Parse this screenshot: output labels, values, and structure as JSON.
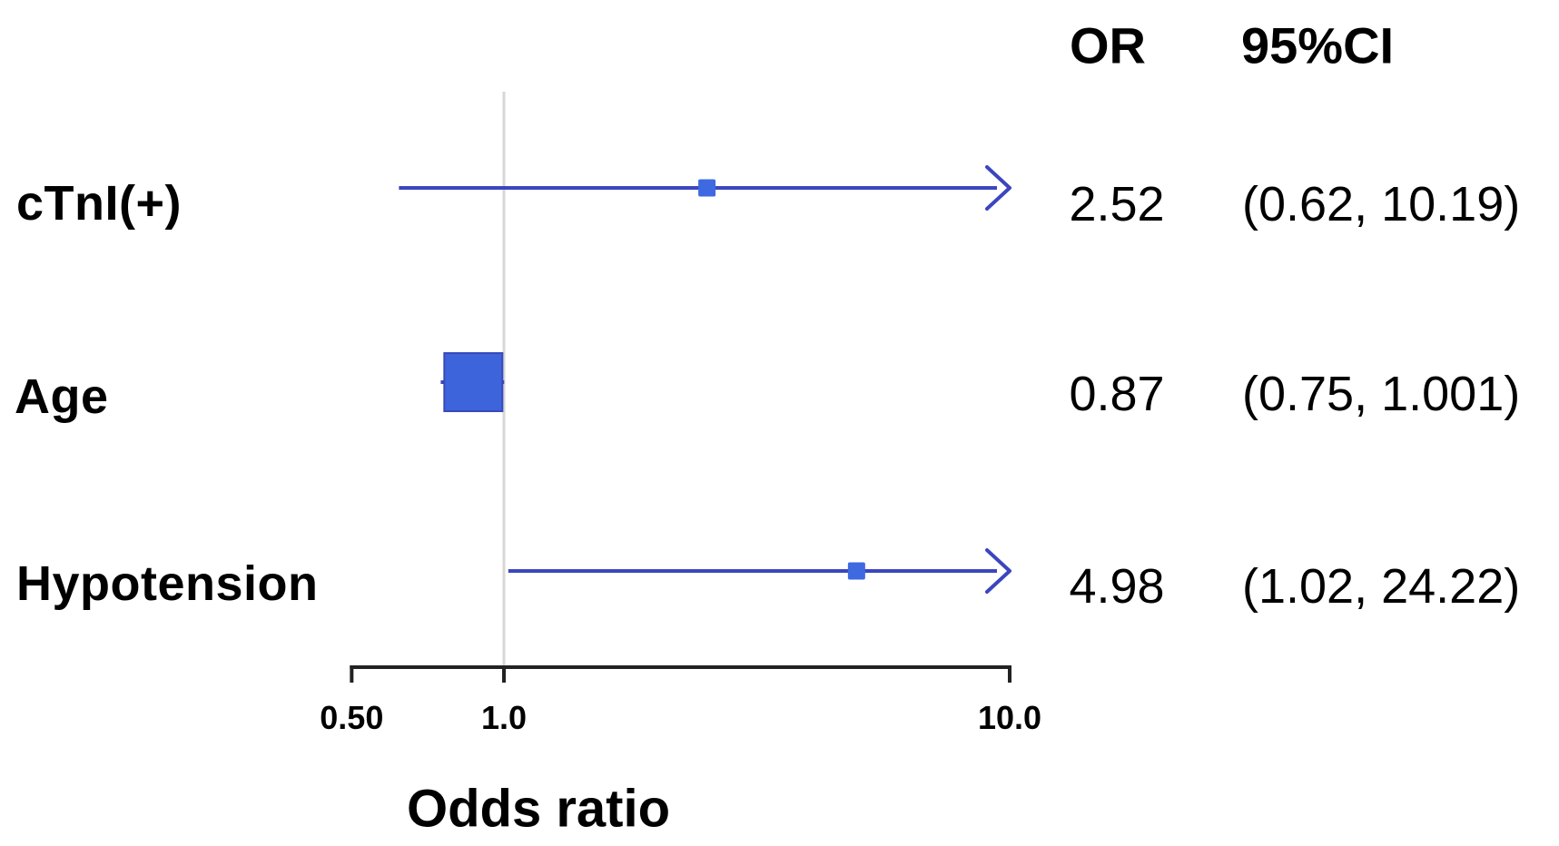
{
  "chart_data": {
    "type": "forest",
    "title": "",
    "xlabel": "Odds ratio",
    "x_scale": "log",
    "x_range": [
      0.5,
      10.0
    ],
    "x_ticks": [
      {
        "value": 0.5,
        "label": "0.50"
      },
      {
        "value": 1.0,
        "label": "1.0"
      },
      {
        "value": 10.0,
        "label": "10.0"
      }
    ],
    "reference_line": 1.0,
    "grid": "off",
    "legend": "none",
    "columns": {
      "or_header": "OR",
      "ci_header": "95%CI"
    },
    "rows": [
      {
        "label": "cTnI(+)",
        "or": 2.52,
        "ci_low": 0.62,
        "ci_high": 10.19,
        "or_text": "2.52",
        "ci_text": "(0.62, 10.19)",
        "upper_clipped": true,
        "marker": "small"
      },
      {
        "label": "Age",
        "or": 0.87,
        "ci_low": 0.75,
        "ci_high": 1.001,
        "or_text": "0.87",
        "ci_text": "(0.75, 1.001)",
        "upper_clipped": false,
        "marker": "large"
      },
      {
        "label": "Hypotension",
        "or": 4.98,
        "ci_low": 1.02,
        "ci_high": 24.22,
        "or_text": "4.98",
        "ci_text": "(1.02, 24.22)",
        "upper_clipped": true,
        "marker": "small"
      }
    ],
    "colors": {
      "line": "#3B46BE",
      "marker": "#3E69E1",
      "box_fill": "#3D64DB",
      "box_border": "#3949BA",
      "reference": "#D7D7D7",
      "axis": "#222222",
      "text": "#000000"
    }
  }
}
